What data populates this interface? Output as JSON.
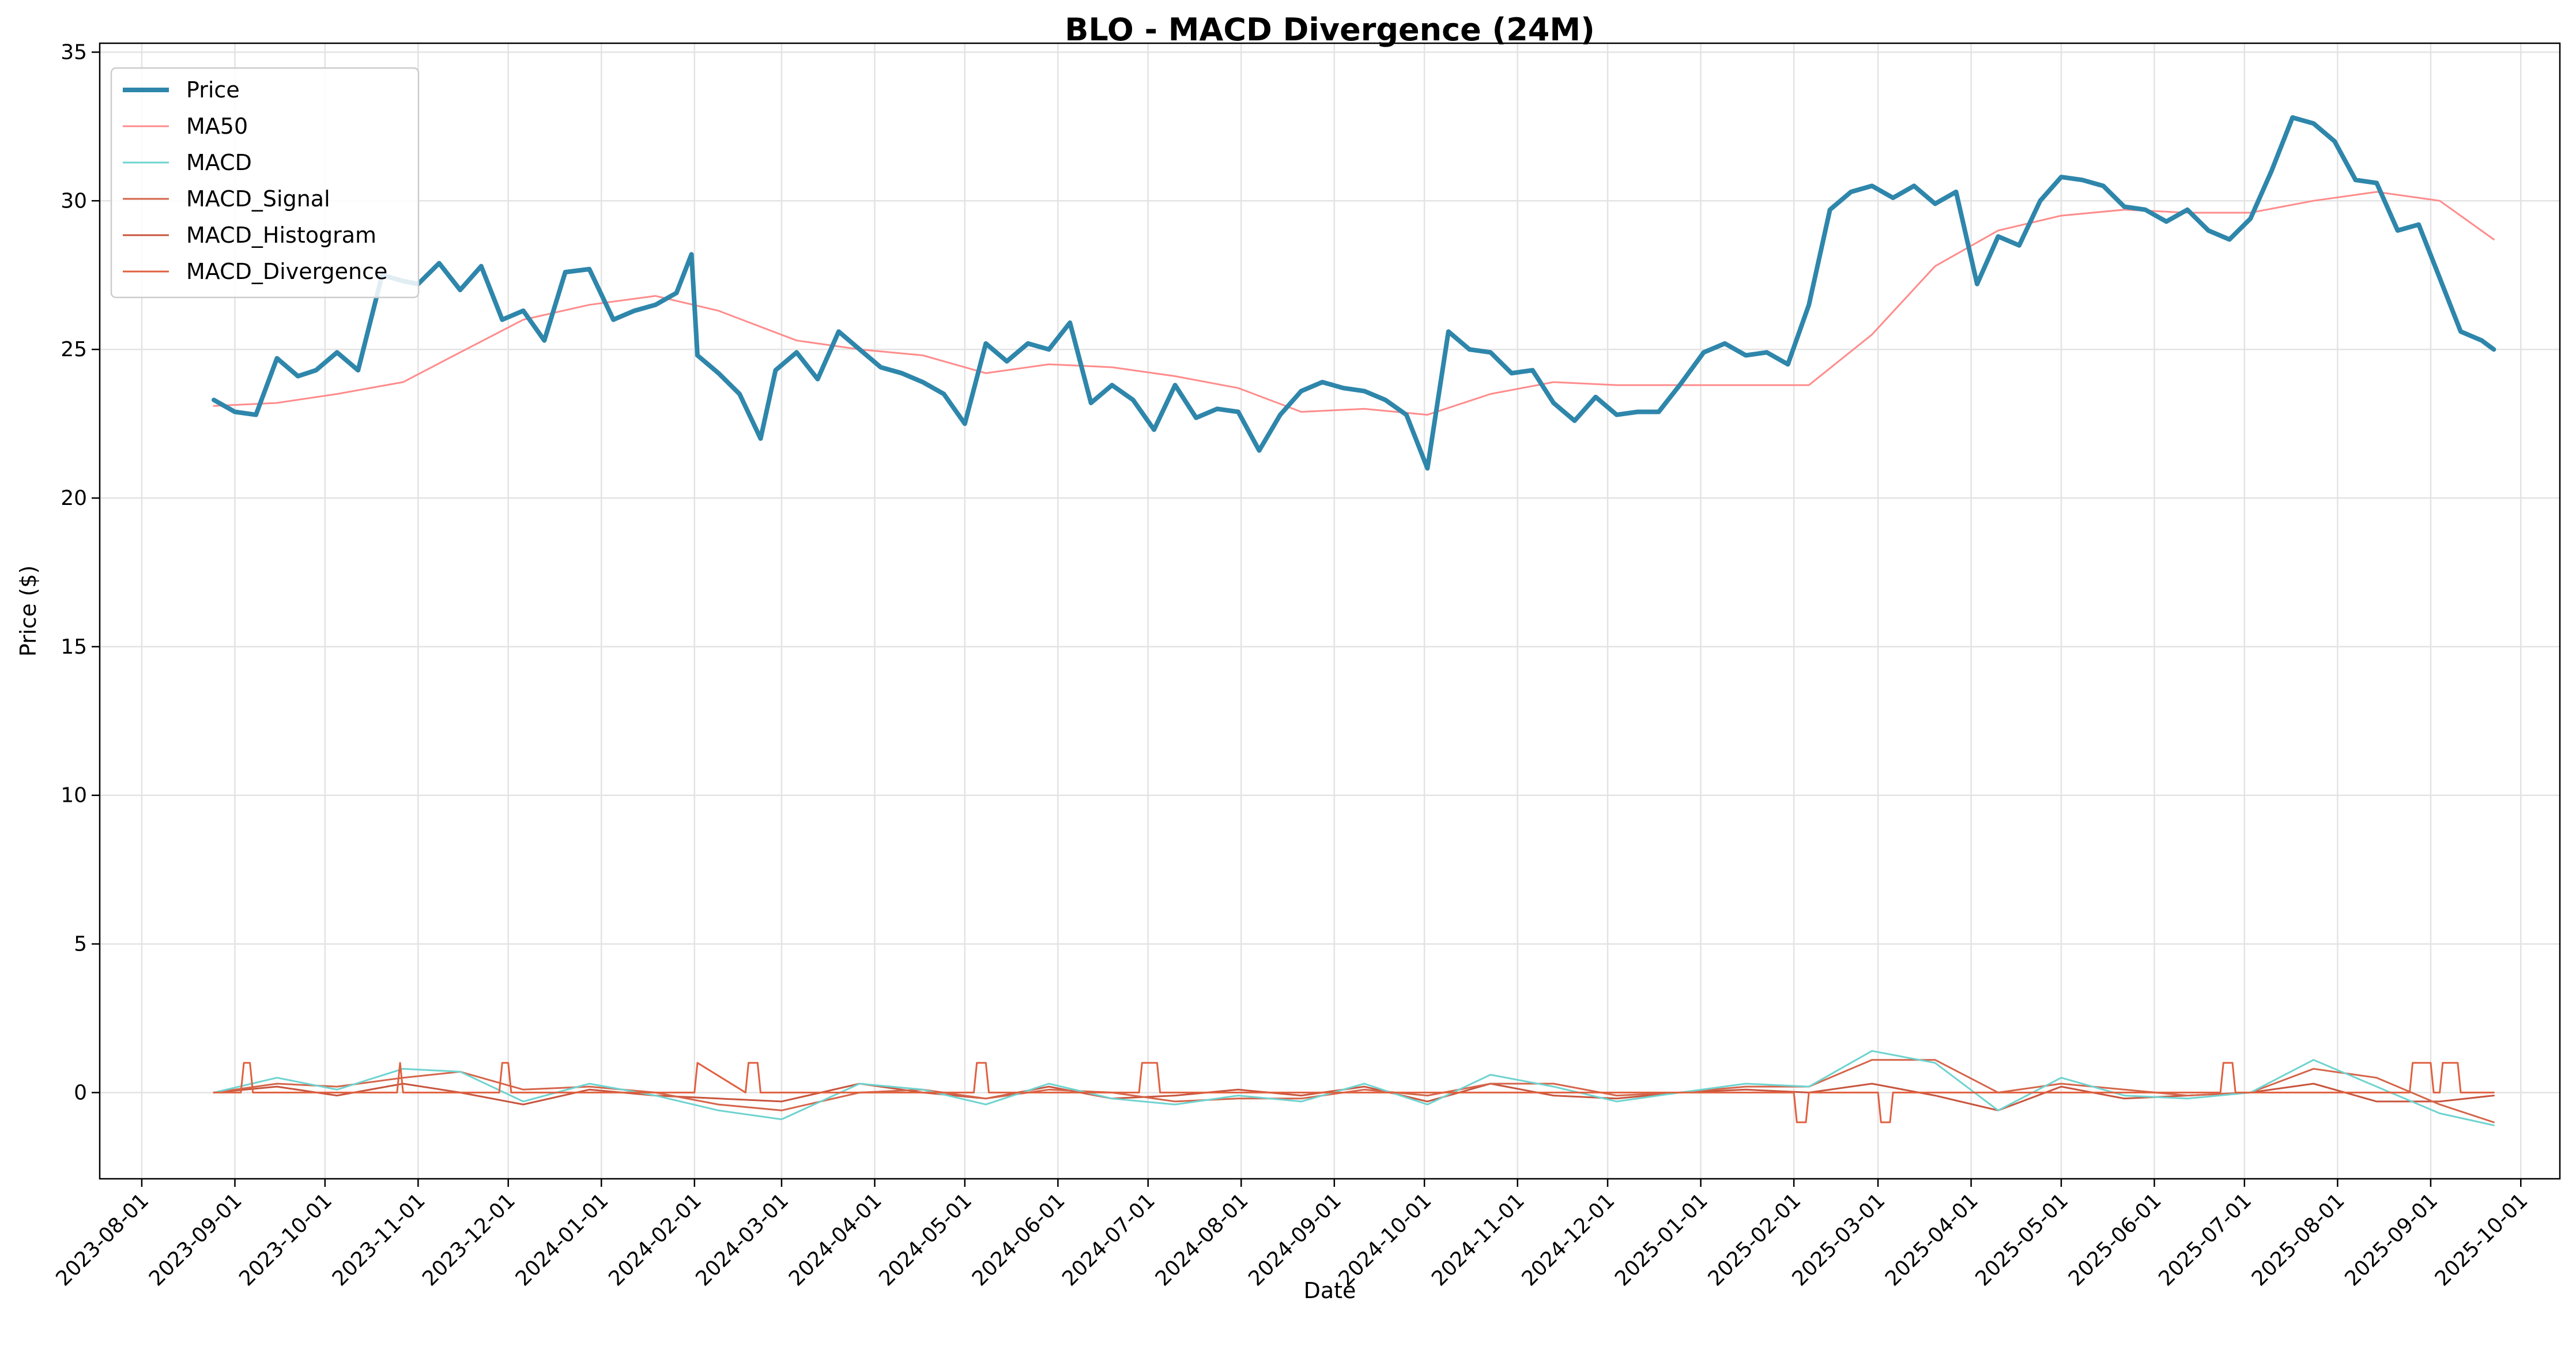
{
  "chart_data": {
    "type": "line",
    "title": "BLO - MACD Divergence (24M)",
    "xlabel": "Date",
    "ylabel": "Price ($)",
    "ylim": [
      -2.9,
      35.3
    ],
    "xlim": [
      "2023-07-18",
      "2025-10-14"
    ],
    "y_ticks": [
      0,
      5,
      10,
      15,
      20,
      25,
      30,
      35
    ],
    "x_ticks": [
      "2023-08-01",
      "2023-09-01",
      "2023-10-01",
      "2023-11-01",
      "2023-12-01",
      "2024-01-01",
      "2024-02-01",
      "2024-03-01",
      "2024-04-01",
      "2024-05-01",
      "2024-06-01",
      "2024-07-01",
      "2024-08-01",
      "2024-09-01",
      "2024-10-01",
      "2024-11-01",
      "2024-12-01",
      "2025-01-01",
      "2025-02-01",
      "2025-03-01",
      "2025-04-01",
      "2025-05-01",
      "2025-06-01",
      "2025-07-01",
      "2025-08-01",
      "2025-09-01",
      "2025-10-01"
    ],
    "grid": true,
    "legend_position": "upper-left",
    "series": [
      {
        "name": "Price",
        "color": "#2e86ab",
        "x": [
          "2023-08-25",
          "2023-09-01",
          "2023-09-08",
          "2023-09-15",
          "2023-09-22",
          "2023-09-28",
          "2023-10-05",
          "2023-10-12",
          "2023-10-20",
          "2023-10-27",
          "2023-11-01",
          "2023-11-08",
          "2023-11-15",
          "2023-11-22",
          "2023-11-29",
          "2023-12-06",
          "2023-12-13",
          "2023-12-20",
          "2023-12-28",
          "2024-01-05",
          "2024-01-12",
          "2024-01-19",
          "2024-01-26",
          "2024-01-31",
          "2024-02-02",
          "2024-02-09",
          "2024-02-16",
          "2024-02-23",
          "2024-02-28",
          "2024-03-06",
          "2024-03-13",
          "2024-03-20",
          "2024-03-27",
          "2024-04-03",
          "2024-04-10",
          "2024-04-17",
          "2024-04-24",
          "2024-05-01",
          "2024-05-08",
          "2024-05-15",
          "2024-05-22",
          "2024-05-29",
          "2024-06-05",
          "2024-06-12",
          "2024-06-19",
          "2024-06-26",
          "2024-07-03",
          "2024-07-10",
          "2024-07-17",
          "2024-07-24",
          "2024-07-31",
          "2024-08-07",
          "2024-08-14",
          "2024-08-21",
          "2024-08-28",
          "2024-09-04",
          "2024-09-11",
          "2024-09-18",
          "2024-09-25",
          "2024-10-02",
          "2024-10-09",
          "2024-10-16",
          "2024-10-23",
          "2024-10-30",
          "2024-11-06",
          "2024-11-13",
          "2024-11-20",
          "2024-11-27",
          "2024-12-04",
          "2024-12-11",
          "2024-12-18",
          "2024-12-25",
          "2025-01-02",
          "2025-01-09",
          "2025-01-16",
          "2025-01-23",
          "2025-01-30",
          "2025-02-06",
          "2025-02-13",
          "2025-02-20",
          "2025-02-27",
          "2025-03-06",
          "2025-03-13",
          "2025-03-20",
          "2025-03-27",
          "2025-04-03",
          "2025-04-10",
          "2025-04-17",
          "2025-04-24",
          "2025-05-01",
          "2025-05-08",
          "2025-05-15",
          "2025-05-22",
          "2025-05-29",
          "2025-06-05",
          "2025-06-12",
          "2025-06-19",
          "2025-06-26",
          "2025-07-03",
          "2025-07-10",
          "2025-07-17",
          "2025-07-24",
          "2025-07-31",
          "2025-08-07",
          "2025-08-14",
          "2025-08-21",
          "2025-08-28",
          "2025-09-04",
          "2025-09-11",
          "2025-09-18",
          "2025-09-22"
        ],
        "y": [
          23.3,
          22.9,
          22.8,
          24.7,
          24.1,
          24.3,
          24.9,
          24.3,
          27.5,
          27.3,
          27.2,
          27.9,
          27.0,
          27.8,
          26.0,
          26.3,
          25.3,
          27.6,
          27.7,
          26.0,
          26.3,
          26.5,
          26.9,
          28.2,
          24.8,
          24.2,
          23.5,
          22.0,
          24.3,
          24.9,
          24.0,
          25.6,
          25.0,
          24.4,
          24.2,
          23.9,
          23.5,
          22.5,
          25.2,
          24.6,
          25.2,
          25.0,
          25.9,
          23.2,
          23.8,
          23.3,
          22.3,
          23.8,
          22.7,
          23.0,
          22.9,
          21.6,
          22.8,
          23.6,
          23.9,
          23.7,
          23.6,
          23.3,
          22.8,
          21.0,
          25.6,
          25.0,
          24.9,
          24.2,
          24.3,
          23.2,
          22.6,
          23.4,
          22.8,
          22.9,
          22.9,
          23.8,
          24.9,
          25.2,
          24.8,
          24.9,
          24.5,
          26.5,
          29.7,
          30.3,
          30.5,
          30.1,
          30.5,
          29.9,
          30.3,
          27.2,
          28.8,
          28.5,
          30.0,
          30.8,
          30.7,
          30.5,
          29.8,
          29.7,
          29.3,
          29.7,
          29.0,
          28.7,
          29.4,
          31.0,
          32.8,
          32.6,
          32.0,
          30.7,
          30.6,
          29.0,
          29.2,
          27.4,
          25.6,
          25.3,
          25.0
        ]
      },
      {
        "name": "MA50",
        "color": "#ff8c8c",
        "x": [
          "2023-08-25",
          "2023-09-15",
          "2023-10-05",
          "2023-10-27",
          "2023-11-15",
          "2023-12-06",
          "2023-12-28",
          "2024-01-19",
          "2024-02-09",
          "2024-03-06",
          "2024-03-27",
          "2024-04-17",
          "2024-05-08",
          "2024-05-29",
          "2024-06-19",
          "2024-07-10",
          "2024-07-31",
          "2024-08-21",
          "2024-09-11",
          "2024-10-02",
          "2024-10-23",
          "2024-11-13",
          "2024-12-04",
          "2024-12-25",
          "2025-01-16",
          "2025-02-06",
          "2025-02-27",
          "2025-03-20",
          "2025-04-10",
          "2025-05-01",
          "2025-05-22",
          "2025-06-12",
          "2025-07-03",
          "2025-07-24",
          "2025-08-14",
          "2025-09-04",
          "2025-09-22"
        ],
        "y": [
          23.1,
          23.2,
          23.5,
          23.9,
          24.9,
          26.0,
          26.5,
          26.8,
          26.3,
          25.3,
          25.0,
          24.8,
          24.2,
          24.5,
          24.4,
          24.1,
          23.7,
          22.9,
          23.0,
          22.8,
          23.5,
          23.9,
          23.8,
          23.8,
          23.8,
          23.8,
          25.5,
          27.8,
          29.0,
          29.5,
          29.7,
          29.6,
          29.6,
          30.0,
          30.3,
          30.0,
          28.7
        ]
      },
      {
        "name": "MACD",
        "color": "#6fd3cf",
        "x": [
          "2023-08-25",
          "2023-09-15",
          "2023-10-05",
          "2023-10-27",
          "2023-11-15",
          "2023-12-06",
          "2023-12-28",
          "2024-01-19",
          "2024-02-09",
          "2024-03-01",
          "2024-03-27",
          "2024-04-17",
          "2024-05-08",
          "2024-05-29",
          "2024-06-19",
          "2024-07-10",
          "2024-07-31",
          "2024-08-21",
          "2024-09-11",
          "2024-10-02",
          "2024-10-23",
          "2024-11-13",
          "2024-12-04",
          "2024-12-25",
          "2025-01-16",
          "2025-02-06",
          "2025-02-27",
          "2025-03-20",
          "2025-04-10",
          "2025-05-01",
          "2025-05-22",
          "2025-06-12",
          "2025-07-03",
          "2025-07-24",
          "2025-08-14",
          "2025-09-04",
          "2025-09-22"
        ],
        "y": [
          0.0,
          0.5,
          0.1,
          0.8,
          0.7,
          -0.3,
          0.3,
          -0.1,
          -0.6,
          -0.9,
          0.3,
          0.1,
          -0.4,
          0.3,
          -0.2,
          -0.4,
          -0.1,
          -0.3,
          0.3,
          -0.4,
          0.6,
          0.2,
          -0.3,
          0.0,
          0.3,
          0.2,
          1.4,
          1.0,
          -0.6,
          0.5,
          -0.1,
          -0.2,
          0.0,
          1.1,
          0.2,
          -0.7,
          -1.1
        ]
      },
      {
        "name": "MACD_Signal",
        "color": "#d4654a",
        "x": [
          "2023-08-25",
          "2023-09-15",
          "2023-10-05",
          "2023-10-27",
          "2023-11-15",
          "2023-12-06",
          "2023-12-28",
          "2024-01-19",
          "2024-02-09",
          "2024-03-01",
          "2024-03-27",
          "2024-04-17",
          "2024-05-08",
          "2024-05-29",
          "2024-06-19",
          "2024-07-10",
          "2024-07-31",
          "2024-08-21",
          "2024-09-11",
          "2024-10-02",
          "2024-10-23",
          "2024-11-13",
          "2024-12-04",
          "2024-12-25",
          "2025-01-16",
          "2025-02-06",
          "2025-02-27",
          "2025-03-20",
          "2025-04-10",
          "2025-05-01",
          "2025-05-22",
          "2025-06-12",
          "2025-07-03",
          "2025-07-24",
          "2025-08-14",
          "2025-09-04",
          "2025-09-22"
        ],
        "y": [
          0.0,
          0.3,
          0.2,
          0.5,
          0.7,
          0.1,
          0.2,
          0.0,
          -0.4,
          -0.6,
          0.0,
          0.1,
          -0.2,
          0.1,
          0.0,
          -0.3,
          -0.2,
          -0.2,
          0.1,
          -0.1,
          0.3,
          0.3,
          -0.1,
          0.0,
          0.2,
          0.2,
          1.1,
          1.1,
          0.0,
          0.3,
          0.1,
          -0.1,
          0.0,
          0.8,
          0.5,
          -0.4,
          -1.0
        ]
      },
      {
        "name": "MACD_Histogram",
        "color": "#c8553d",
        "x": [
          "2023-08-25",
          "2023-09-15",
          "2023-10-05",
          "2023-10-27",
          "2023-11-15",
          "2023-12-06",
          "2023-12-28",
          "2024-01-19",
          "2024-02-09",
          "2024-03-01",
          "2024-03-27",
          "2024-04-17",
          "2024-05-08",
          "2024-05-29",
          "2024-06-19",
          "2024-07-10",
          "2024-07-31",
          "2024-08-21",
          "2024-09-11",
          "2024-10-02",
          "2024-10-23",
          "2024-11-13",
          "2024-12-04",
          "2024-12-25",
          "2025-01-16",
          "2025-02-06",
          "2025-02-27",
          "2025-03-20",
          "2025-04-10",
          "2025-05-01",
          "2025-05-22",
          "2025-06-12",
          "2025-07-03",
          "2025-07-24",
          "2025-08-14",
          "2025-09-04",
          "2025-09-22"
        ],
        "y": [
          0.0,
          0.2,
          -0.1,
          0.3,
          0.0,
          -0.4,
          0.1,
          -0.1,
          -0.2,
          -0.3,
          0.3,
          0.0,
          -0.2,
          0.2,
          -0.2,
          -0.1,
          0.1,
          -0.1,
          0.2,
          -0.3,
          0.3,
          -0.1,
          -0.2,
          0.0,
          0.1,
          0.0,
          0.3,
          -0.1,
          -0.6,
          0.2,
          -0.2,
          -0.1,
          0.0,
          0.3,
          -0.3,
          -0.3,
          -0.1
        ]
      },
      {
        "name": "MACD_Divergence",
        "color": "#e0603f",
        "x": [
          "2023-08-25",
          "2023-09-03",
          "2023-09-04",
          "2023-09-06",
          "2023-09-07",
          "2023-10-25",
          "2023-10-26",
          "2023-10-27",
          "2023-11-28",
          "2023-11-29",
          "2023-12-01",
          "2023-12-02",
          "2024-01-01",
          "2024-02-01",
          "2024-02-02",
          "2024-02-18",
          "2024-02-19",
          "2024-02-22",
          "2024-02-23",
          "2024-05-04",
          "2024-05-05",
          "2024-05-08",
          "2024-05-09",
          "2024-06-28",
          "2024-06-29",
          "2024-07-04",
          "2024-07-05",
          "2025-02-01",
          "2025-02-02",
          "2025-02-05",
          "2025-02-06",
          "2025-03-01",
          "2025-03-02",
          "2025-03-05",
          "2025-03-06",
          "2025-06-23",
          "2025-06-24",
          "2025-06-27",
          "2025-06-28",
          "2025-08-25",
          "2025-08-26",
          "2025-09-01",
          "2025-09-02",
          "2025-09-04",
          "2025-09-05",
          "2025-09-10",
          "2025-09-11",
          "2025-09-22"
        ],
        "y": [
          0,
          0,
          1,
          1,
          0,
          0,
          1,
          0,
          0,
          1,
          1,
          0,
          0,
          0,
          1,
          0,
          1,
          1,
          0,
          0,
          1,
          1,
          0,
          0,
          1,
          1,
          0,
          0,
          -1,
          -1,
          0,
          0,
          -1,
          -1,
          0,
          0,
          1,
          1,
          0,
          0,
          1,
          1,
          0,
          0,
          1,
          1,
          0,
          0
        ]
      }
    ]
  }
}
